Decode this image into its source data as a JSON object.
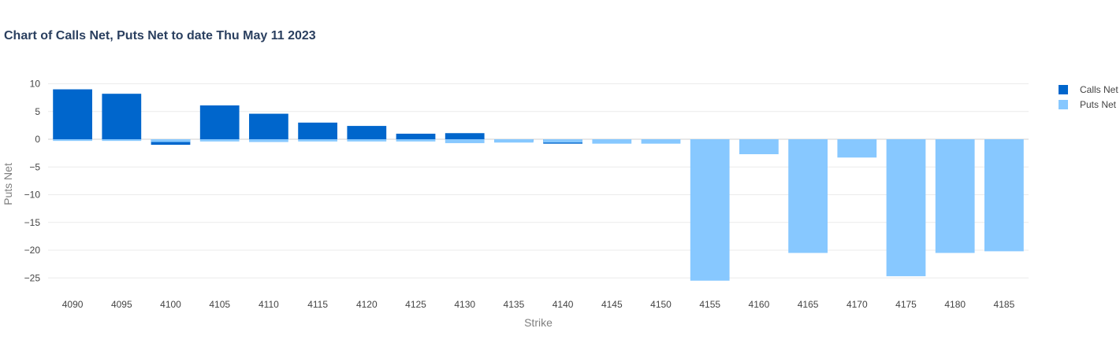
{
  "chart_data": {
    "type": "bar",
    "barmode": "overlay",
    "title": "Chart of Calls Net, Puts Net to date Thu May 11 2023",
    "xlabel": "Strike",
    "ylabel": "Puts Net",
    "categories": [
      "4090",
      "4095",
      "4100",
      "4105",
      "4110",
      "4115",
      "4120",
      "4125",
      "4130",
      "4135",
      "4140",
      "4145",
      "4150",
      "4155",
      "4160",
      "4165",
      "4170",
      "4175",
      "4180",
      "4185"
    ],
    "series": [
      {
        "name": "Calls Net",
        "color": "#0066cc",
        "values": [
          9,
          8.2,
          -1,
          6.1,
          4.6,
          3,
          2.4,
          1,
          1.1,
          -0.4,
          -0.8,
          0,
          0,
          0,
          0,
          0,
          0,
          0,
          0,
          0
        ]
      },
      {
        "name": "Puts Net",
        "color": "#87c8ff",
        "values": [
          -0.3,
          -0.3,
          -0.5,
          -0.4,
          -0.5,
          -0.4,
          -0.4,
          -0.4,
          -0.7,
          -0.6,
          -0.6,
          -0.8,
          -0.8,
          -25.5,
          -2.7,
          -20.5,
          -3.3,
          -24.7,
          -20.5,
          -20.2
        ]
      }
    ],
    "yticks": [
      10,
      5,
      0,
      -5,
      -10,
      -15,
      -20,
      -25
    ],
    "ytick_labels": [
      "10",
      "5",
      "0",
      "−5",
      "−10",
      "−15",
      "−20",
      "−25"
    ],
    "ylim": [
      -27.5,
      11
    ],
    "grid": true,
    "legend_position": "top-right"
  }
}
